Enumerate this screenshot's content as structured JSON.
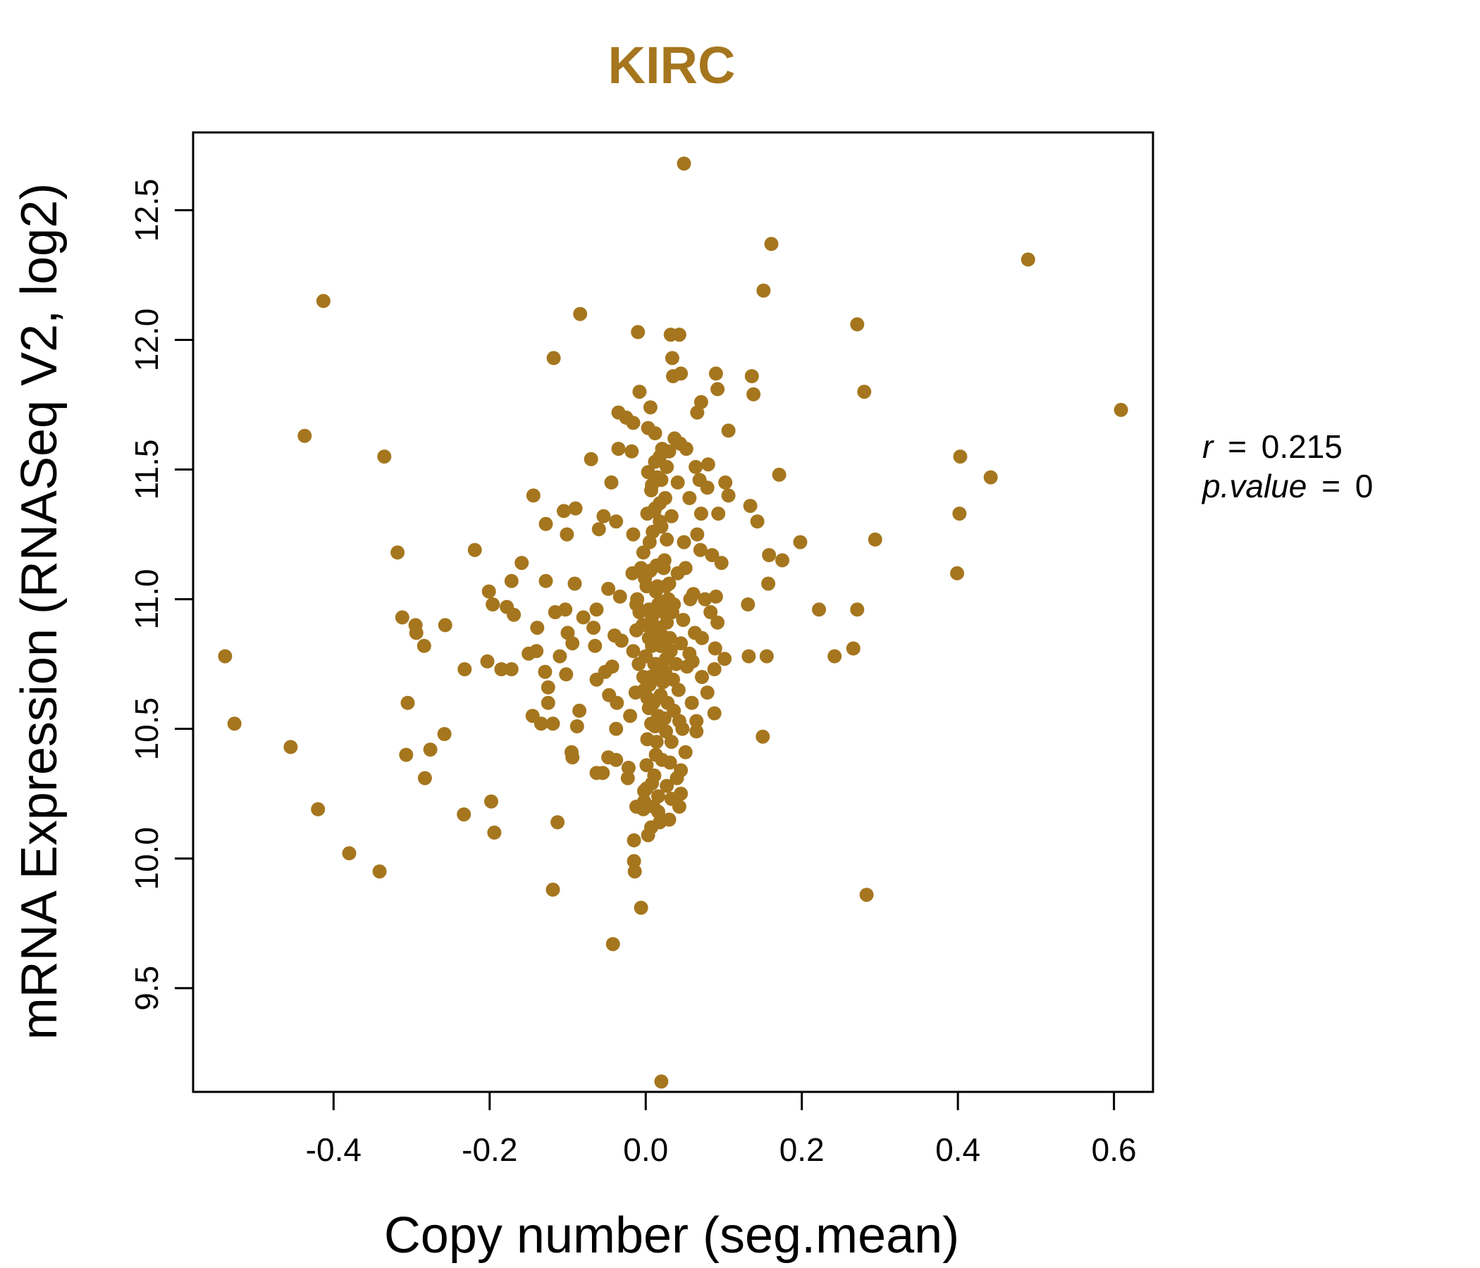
{
  "chart_data": {
    "type": "scatter",
    "title": "KIRC",
    "xlabel": "Copy number (seg.mean)",
    "ylabel": "mRNA Expression (RNASeq V2, log2)",
    "xlim": [
      -0.58,
      0.65
    ],
    "ylim": [
      9.1,
      12.8
    ],
    "x_ticks": [
      -0.4,
      -0.2,
      0.0,
      0.2,
      0.4,
      0.6
    ],
    "x_tick_labels": [
      "-0.4",
      "-0.2",
      "0.0",
      "0.2",
      "0.4",
      "0.6"
    ],
    "y_ticks": [
      9.5,
      10.0,
      10.5,
      11.0,
      11.5,
      12.0,
      12.5
    ],
    "y_tick_labels": [
      "9.5",
      "10.0",
      "10.5",
      "11.0",
      "11.5",
      "12.0",
      "12.5"
    ],
    "grid": false,
    "point_color": "#A5761E",
    "title_color": "#A5761E",
    "annotations": [
      {
        "prefix": "r",
        "value": "0.215"
      },
      {
        "prefix": "p.value",
        "value": "0"
      }
    ],
    "points": [
      [
        0.049,
        12.68
      ],
      [
        0.161,
        12.37
      ],
      [
        0.49,
        12.31
      ],
      [
        0.151,
        12.19
      ],
      [
        -0.413,
        12.15
      ],
      [
        -0.084,
        12.1
      ],
      [
        0.271,
        12.06
      ],
      [
        -0.01,
        12.03
      ],
      [
        0.032,
        12.02
      ],
      [
        0.043,
        12.02
      ],
      [
        -0.118,
        11.93
      ],
      [
        0.034,
        11.93
      ],
      [
        0.09,
        11.87
      ],
      [
        0.035,
        11.86
      ],
      [
        0.045,
        11.87
      ],
      [
        0.136,
        11.86
      ],
      [
        -0.008,
        11.8
      ],
      [
        0.092,
        11.81
      ],
      [
        0.28,
        11.8
      ],
      [
        0.138,
        11.79
      ],
      [
        0.006,
        11.74
      ],
      [
        0.071,
        11.76
      ],
      [
        0.066,
        11.72
      ],
      [
        0.609,
        11.73
      ],
      [
        -0.035,
        11.72
      ],
      [
        -0.025,
        11.7
      ],
      [
        -0.016,
        11.68
      ],
      [
        0.003,
        11.66
      ],
      [
        0.012,
        11.64
      ],
      [
        0.106,
        11.65
      ],
      [
        -0.437,
        11.63
      ],
      [
        0.037,
        11.62
      ],
      [
        0.044,
        11.6
      ],
      [
        0.052,
        11.58
      ],
      [
        0.03,
        11.57
      ],
      [
        0.021,
        11.58
      ],
      [
        -0.035,
        11.58
      ],
      [
        -0.018,
        11.57
      ],
      [
        0.018,
        11.55
      ],
      [
        -0.07,
        11.54
      ],
      [
        -0.335,
        11.55
      ],
      [
        0.403,
        11.55
      ],
      [
        0.012,
        11.53
      ],
      [
        0.08,
        11.52
      ],
      [
        0.064,
        11.51
      ],
      [
        0.027,
        11.51
      ],
      [
        0.003,
        11.49
      ],
      [
        0.171,
        11.48
      ],
      [
        0.442,
        11.47
      ],
      [
        0.069,
        11.46
      ],
      [
        -0.044,
        11.45
      ],
      [
        0.008,
        11.44
      ],
      [
        0.02,
        11.46
      ],
      [
        0.041,
        11.45
      ],
      [
        0.102,
        11.45
      ],
      [
        0.079,
        11.43
      ],
      [
        -0.144,
        11.4
      ],
      [
        0.106,
        11.4
      ],
      [
        0.056,
        11.39
      ],
      [
        0.025,
        11.39
      ],
      [
        0.134,
        11.36
      ],
      [
        0.018,
        11.37
      ],
      [
        -0.09,
        11.35
      ],
      [
        -0.105,
        11.34
      ],
      [
        0.011,
        11.34
      ],
      [
        0.002,
        11.33
      ],
      [
        0.402,
        11.33
      ],
      [
        0.033,
        11.32
      ],
      [
        0.071,
        11.33
      ],
      [
        0.093,
        11.33
      ],
      [
        -0.054,
        11.32
      ],
      [
        -0.038,
        11.3
      ],
      [
        -0.128,
        11.29
      ],
      [
        0.143,
        11.3
      ],
      [
        -0.06,
        11.27
      ],
      [
        0.02,
        11.28
      ],
      [
        0.009,
        11.26
      ],
      [
        -0.016,
        11.25
      ],
      [
        -0.101,
        11.25
      ],
      [
        0.066,
        11.25
      ],
      [
        0.027,
        11.23
      ],
      [
        0.294,
        11.23
      ],
      [
        0.198,
        11.22
      ],
      [
        0.049,
        11.22
      ],
      [
        -0.318,
        11.18
      ],
      [
        -0.219,
        11.19
      ],
      [
        0.07,
        11.19
      ],
      [
        -0.003,
        11.18
      ],
      [
        0.085,
        11.17
      ],
      [
        0.158,
        11.17
      ],
      [
        0.175,
        11.15
      ],
      [
        -0.159,
        11.14
      ],
      [
        0.097,
        11.14
      ],
      [
        0.014,
        11.13
      ],
      [
        0.051,
        11.12
      ],
      [
        0.023,
        11.12
      ],
      [
        0.006,
        11.11
      ],
      [
        -0.017,
        11.1
      ],
      [
        0.399,
        11.1
      ],
      [
        0.041,
        11.1
      ],
      [
        -0.128,
        11.07
      ],
      [
        -0.172,
        11.07
      ],
      [
        -0.091,
        11.06
      ],
      [
        0.157,
        11.06
      ],
      [
        0.03,
        11.06
      ],
      [
        0.001,
        11.05
      ],
      [
        -0.201,
        11.03
      ],
      [
        -0.048,
        11.04
      ],
      [
        0.013,
        11.03
      ],
      [
        0.061,
        11.02
      ],
      [
        -0.033,
        11.01
      ],
      [
        0.09,
        11.01
      ],
      [
        0.057,
        11.0
      ],
      [
        0.076,
        11.0
      ],
      [
        0.024,
        10.99
      ],
      [
        -0.196,
        10.98
      ],
      [
        -0.012,
        10.98
      ],
      [
        -0.178,
        10.97
      ],
      [
        0.131,
        10.98
      ],
      [
        0.016,
        10.98
      ],
      [
        -0.103,
        10.96
      ],
      [
        -0.063,
        10.96
      ],
      [
        0.004,
        10.96
      ],
      [
        0.222,
        10.96
      ],
      [
        0.271,
        10.96
      ],
      [
        -0.008,
        10.95
      ],
      [
        0.034,
        10.95
      ],
      [
        -0.116,
        10.95
      ],
      [
        0.083,
        10.95
      ],
      [
        -0.169,
        10.94
      ],
      [
        -0.312,
        10.93
      ],
      [
        -0.08,
        10.93
      ],
      [
        0.008,
        10.93
      ],
      [
        0.048,
        10.92
      ],
      [
        0.092,
        10.91
      ],
      [
        0.027,
        10.91
      ],
      [
        -0.257,
        10.9
      ],
      [
        -0.295,
        10.9
      ],
      [
        -0.139,
        10.89
      ],
      [
        -0.067,
        10.89
      ],
      [
        -0.012,
        10.88
      ],
      [
        0.011,
        10.88
      ],
      [
        0.063,
        10.87
      ],
      [
        -0.294,
        10.87
      ],
      [
        -0.1,
        10.87
      ],
      [
        -0.04,
        10.86
      ],
      [
        0.021,
        10.86
      ],
      [
        0.072,
        10.85
      ],
      [
        -0.031,
        10.84
      ],
      [
        0.02,
        10.84
      ],
      [
        -0.094,
        10.83
      ],
      [
        0.045,
        10.83
      ],
      [
        -0.065,
        10.82
      ],
      [
        -0.284,
        10.82
      ],
      [
        0.008,
        10.82
      ],
      [
        0.089,
        10.81
      ],
      [
        0.266,
        10.81
      ],
      [
        -0.14,
        10.8
      ],
      [
        -0.016,
        10.8
      ],
      [
        0.032,
        10.8
      ],
      [
        0.056,
        10.79
      ],
      [
        -0.11,
        10.78
      ],
      [
        0.242,
        10.78
      ],
      [
        -0.15,
        10.79
      ],
      [
        0.0,
        10.78
      ],
      [
        0.132,
        10.78
      ],
      [
        0.155,
        10.78
      ],
      [
        -0.539,
        10.78
      ],
      [
        0.101,
        10.77
      ],
      [
        0.026,
        10.77
      ],
      [
        0.06,
        10.76
      ],
      [
        -0.203,
        10.76
      ],
      [
        0.011,
        10.75
      ],
      [
        -0.043,
        10.74
      ],
      [
        0.053,
        10.74
      ],
      [
        -0.185,
        10.73
      ],
      [
        0.088,
        10.73
      ],
      [
        -0.232,
        10.73
      ],
      [
        -0.172,
        10.73
      ],
      [
        -0.129,
        10.72
      ],
      [
        -0.052,
        10.72
      ],
      [
        0.019,
        10.71
      ],
      [
        -0.102,
        10.71
      ],
      [
        0.072,
        10.7
      ],
      [
        -0.003,
        10.7
      ],
      [
        0.035,
        10.69
      ],
      [
        -0.063,
        10.69
      ],
      [
        0.005,
        10.67
      ],
      [
        -0.125,
        10.66
      ],
      [
        0.042,
        10.65
      ],
      [
        0.079,
        10.64
      ],
      [
        -0.013,
        10.64
      ],
      [
        -0.047,
        10.63
      ],
      [
        0.019,
        10.63
      ],
      [
        0.002,
        10.62
      ],
      [
        -0.037,
        10.6
      ],
      [
        0.059,
        10.6
      ],
      [
        -0.305,
        10.6
      ],
      [
        -0.125,
        10.6
      ],
      [
        0.004,
        10.58
      ],
      [
        -0.085,
        10.57
      ],
      [
        0.036,
        10.57
      ],
      [
        0.088,
        10.56
      ],
      [
        -0.145,
        10.55
      ],
      [
        -0.02,
        10.55
      ],
      [
        0.024,
        10.54
      ],
      [
        0.043,
        10.53
      ],
      [
        -0.119,
        10.52
      ],
      [
        0.065,
        10.53
      ],
      [
        -0.134,
        10.52
      ],
      [
        -0.527,
        10.52
      ],
      [
        0.012,
        10.51
      ],
      [
        -0.088,
        10.51
      ],
      [
        0.047,
        10.5
      ],
      [
        -0.038,
        10.5
      ],
      [
        0.026,
        10.49
      ],
      [
        0.065,
        10.49
      ],
      [
        -0.258,
        10.48
      ],
      [
        0.15,
        10.47
      ],
      [
        0.002,
        10.46
      ],
      [
        0.033,
        10.45
      ],
      [
        -0.455,
        10.43
      ],
      [
        -0.276,
        10.42
      ],
      [
        -0.095,
        10.41
      ],
      [
        0.051,
        10.41
      ],
      [
        -0.048,
        10.39
      ],
      [
        -0.307,
        10.4
      ],
      [
        0.013,
        10.4
      ],
      [
        -0.038,
        10.38
      ],
      [
        -0.094,
        10.39
      ],
      [
        0.031,
        10.37
      ],
      [
        0.001,
        10.36
      ],
      [
        -0.022,
        10.35
      ],
      [
        0.045,
        10.34
      ],
      [
        -0.063,
        10.33
      ],
      [
        -0.055,
        10.33
      ],
      [
        -0.023,
        10.31
      ],
      [
        0.04,
        10.31
      ],
      [
        -0.283,
        10.31
      ],
      [
        0.008,
        10.29
      ],
      [
        0.027,
        10.28
      ],
      [
        0.001,
        10.27
      ],
      [
        -0.002,
        10.26
      ],
      [
        0.045,
        10.25
      ],
      [
        0.016,
        10.24
      ],
      [
        0.033,
        10.23
      ],
      [
        -0.002,
        10.22
      ],
      [
        -0.198,
        10.22
      ],
      [
        0.043,
        10.2
      ],
      [
        -0.012,
        10.2
      ],
      [
        -0.003,
        10.19
      ],
      [
        -0.42,
        10.19
      ],
      [
        0.016,
        10.18
      ],
      [
        -0.233,
        10.17
      ],
      [
        0.03,
        10.15
      ],
      [
        0.018,
        10.14
      ],
      [
        -0.113,
        10.14
      ],
      [
        0.007,
        10.12
      ],
      [
        -0.194,
        10.1
      ],
      [
        0.003,
        10.09
      ],
      [
        -0.015,
        10.07
      ],
      [
        -0.38,
        10.02
      ],
      [
        -0.015,
        9.99
      ],
      [
        -0.341,
        9.95
      ],
      [
        -0.014,
        9.95
      ],
      [
        0.283,
        9.86
      ],
      [
        -0.119,
        9.88
      ],
      [
        -0.006,
        9.81
      ],
      [
        -0.042,
        9.67
      ],
      [
        0.02,
        9.14
      ],
      [
        0.012,
        11.35
      ],
      [
        0.005,
        11.22
      ],
      [
        0.015,
        11.05
      ],
      [
        0.009,
        10.95
      ],
      [
        0.017,
        10.89
      ],
      [
        0.004,
        10.85
      ],
      [
        0.013,
        10.75
      ],
      [
        0.006,
        10.7
      ],
      [
        0.022,
        10.68
      ],
      [
        0.01,
        10.6
      ],
      [
        0.016,
        10.55
      ],
      [
        0.007,
        10.52
      ],
      [
        0.028,
        10.6
      ],
      [
        0.025,
        10.72
      ],
      [
        0.031,
        10.85
      ],
      [
        0.029,
        11.0
      ],
      [
        0.024,
        11.15
      ],
      [
        0.018,
        11.3
      ],
      [
        -0.006,
        11.12
      ],
      [
        -0.004,
        10.9
      ],
      [
        -0.009,
        10.75
      ],
      [
        -0.002,
        10.65
      ],
      [
        0.036,
        10.98
      ],
      [
        0.039,
        10.75
      ],
      [
        0.014,
        10.45
      ],
      [
        0.021,
        10.38
      ],
      [
        0.011,
        10.32
      ],
      [
        0.007,
        11.42
      ],
      [
        0.015,
        11.47
      ],
      [
        0.01,
        10.2
      ],
      [
        -0.011,
        11.0
      ],
      [
        -0.001,
        11.08
      ],
      [
        0.023,
        10.95
      ],
      [
        0.019,
        10.82
      ],
      [
        0.008,
        10.88
      ],
      [
        0.026,
        11.05
      ]
    ]
  }
}
